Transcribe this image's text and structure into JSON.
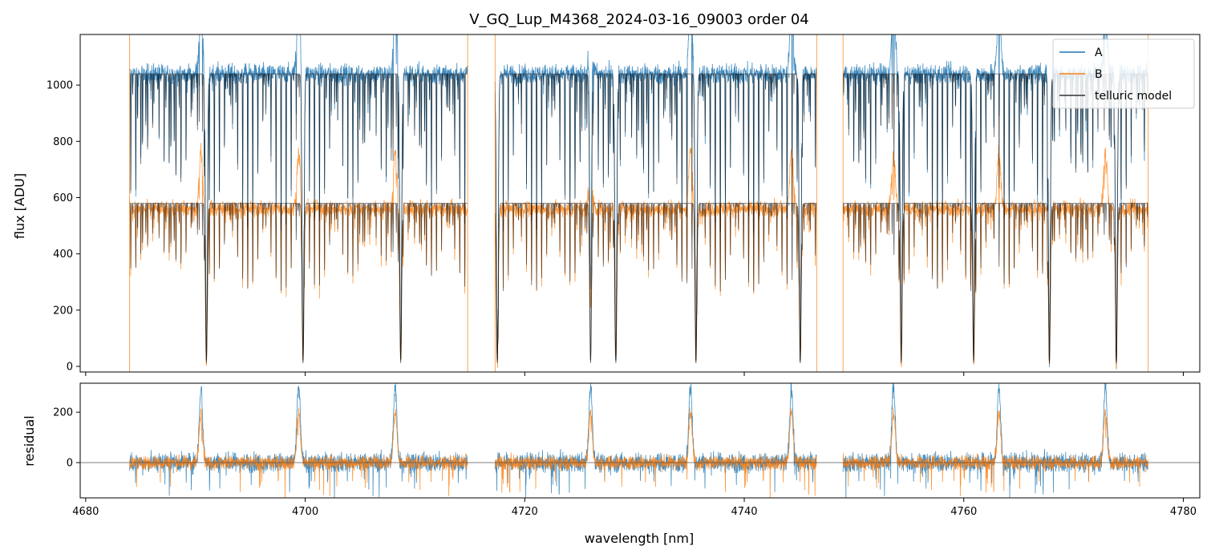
{
  "chart_data": [
    {
      "type": "line",
      "panel": "top",
      "title": "V_GQ_Lup_M4368_2024-03-16_09003  order 04",
      "xlabel": "",
      "ylabel": "flux [ADU]",
      "xlim": [
        4679.5,
        4781.5
      ],
      "ylim": [
        -20,
        1180
      ],
      "yticks": [
        0,
        200,
        400,
        600,
        800,
        1000
      ],
      "xticks": [
        4680,
        4700,
        4720,
        4740,
        4760,
        4780
      ],
      "segments": [
        [
          4684.0,
          4714.8
        ],
        [
          4717.3,
          4746.6
        ],
        [
          4749.0,
          4776.8
        ]
      ],
      "telluric_lines_nm": [
        4691.0,
        4699.8,
        4708.7,
        4717.5,
        4726.0,
        4728.3,
        4735.6,
        4745.1,
        4754.3,
        4760.9,
        4767.8,
        4773.9
      ],
      "series": [
        {
          "name": "A",
          "color": "#1f77b4",
          "continuum": 1040
        },
        {
          "name": "B",
          "color": "#ff7f0e",
          "continuum": 560
        },
        {
          "name": "telluric model",
          "color": "#000000",
          "continuum_A": 1040,
          "continuum_B": 580
        }
      ],
      "legend": [
        "A",
        "B",
        "telluric model"
      ],
      "legend_position": "top-right"
    },
    {
      "type": "line",
      "panel": "bottom",
      "xlabel": "wavelength [nm]",
      "ylabel": "residual",
      "xlim": [
        4679.5,
        4781.5
      ],
      "ylim": [
        -140,
        315
      ],
      "yticks": [
        0,
        200
      ],
      "xticks": [
        4680,
        4700,
        4720,
        4740,
        4760,
        4780
      ],
      "residual_peaks_nm": [
        4690.5,
        4699.4,
        4708.2,
        4726.0,
        4735.1,
        4744.3,
        4753.6,
        4763.2,
        4772.9
      ],
      "series": [
        {
          "name": "A",
          "color": "#1f77b4"
        },
        {
          "name": "B",
          "color": "#ff7f0e"
        }
      ]
    }
  ],
  "labels": {
    "title": "V_GQ_Lup_M4368_2024-03-16_09003  order 04",
    "ylabel_top": "flux [ADU]",
    "ylabel_bottom": "residual",
    "xlabel": "wavelength [nm]",
    "legend_A": "A",
    "legend_B": "B",
    "legend_T": "telluric model"
  },
  "colors": {
    "A": "#1f77b4",
    "B": "#ff7f0e",
    "telluric": "#000000",
    "zero_line": "#555555"
  }
}
